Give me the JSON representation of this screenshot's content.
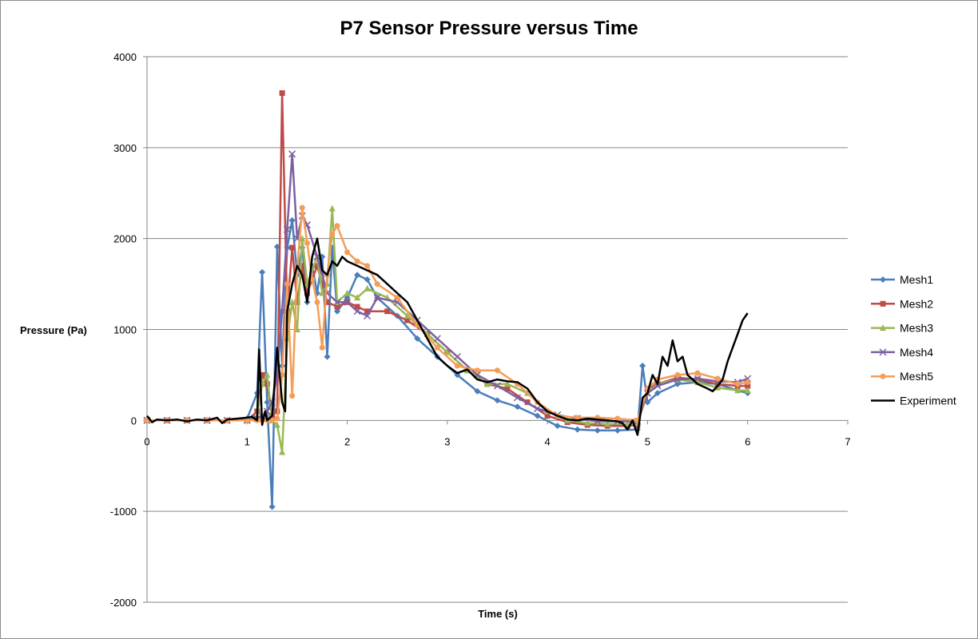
{
  "chart_data": {
    "type": "line",
    "title": "P7 Sensor Pressure versus Time",
    "xlabel": "Time (s)",
    "ylabel": "Pressure (Pa)",
    "xlim": [
      0,
      7
    ],
    "ylim": [
      -2000,
      4000
    ],
    "x_ticks": [
      0,
      1,
      2,
      3,
      4,
      5,
      6,
      7
    ],
    "y_ticks": [
      -2000,
      -1000,
      0,
      1000,
      2000,
      3000,
      4000
    ],
    "grid": "horizontal",
    "legend": "right",
    "series": [
      {
        "name": "Mesh1",
        "color": "#4a7ebb",
        "marker": "diamond",
        "x": [
          0,
          0.2,
          0.4,
          0.6,
          0.8,
          1.0,
          1.1,
          1.15,
          1.2,
          1.25,
          1.3,
          1.35,
          1.4,
          1.45,
          1.5,
          1.55,
          1.6,
          1.65,
          1.7,
          1.75,
          1.8,
          1.85,
          1.9,
          2.0,
          2.1,
          2.2,
          2.3,
          2.5,
          2.7,
          2.9,
          3.1,
          3.3,
          3.5,
          3.7,
          3.9,
          4.1,
          4.3,
          4.5,
          4.7,
          4.9,
          4.95,
          5.0,
          5.1,
          5.3,
          5.5,
          5.7,
          5.9,
          6.0
        ],
        "y": [
          0,
          0,
          0,
          0,
          0,
          20,
          300,
          1630,
          200,
          -950,
          1910,
          600,
          1900,
          2200,
          1600,
          1900,
          1300,
          1700,
          1400,
          1800,
          700,
          1900,
          1200,
          1350,
          1600,
          1550,
          1350,
          1150,
          900,
          700,
          500,
          320,
          220,
          150,
          50,
          -60,
          -100,
          -110,
          -110,
          -100,
          600,
          200,
          300,
          400,
          420,
          400,
          330,
          300
        ]
      },
      {
        "name": "Mesh2",
        "color": "#be4b48",
        "marker": "square",
        "x": [
          0,
          0.2,
          0.4,
          0.6,
          0.8,
          1.0,
          1.1,
          1.15,
          1.2,
          1.25,
          1.3,
          1.35,
          1.4,
          1.45,
          1.5,
          1.55,
          1.6,
          1.7,
          1.8,
          1.9,
          2.0,
          2.1,
          2.2,
          2.4,
          2.6,
          2.8,
          3.0,
          3.2,
          3.4,
          3.6,
          3.8,
          4.0,
          4.2,
          4.4,
          4.6,
          4.8,
          4.9,
          5.0,
          5.1,
          5.3,
          5.5,
          5.7,
          5.9,
          6.0
        ],
        "y": [
          0,
          0,
          0,
          0,
          0,
          0,
          100,
          500,
          400,
          50,
          100,
          3600,
          1200,
          1900,
          1300,
          1700,
          1400,
          1700,
          1300,
          1250,
          1300,
          1250,
          1200,
          1200,
          1100,
          950,
          750,
          550,
          400,
          350,
          200,
          50,
          -20,
          -50,
          -60,
          -60,
          -50,
          350,
          400,
          470,
          450,
          400,
          380,
          380
        ]
      },
      {
        "name": "Mesh3",
        "color": "#98b954",
        "marker": "triangle",
        "x": [
          0,
          0.2,
          0.4,
          0.6,
          0.8,
          1.0,
          1.1,
          1.15,
          1.2,
          1.25,
          1.3,
          1.35,
          1.4,
          1.45,
          1.5,
          1.55,
          1.6,
          1.7,
          1.75,
          1.8,
          1.85,
          1.9,
          2.0,
          2.1,
          2.2,
          2.4,
          2.6,
          2.8,
          3.0,
          3.2,
          3.4,
          3.6,
          3.8,
          4.0,
          4.2,
          4.4,
          4.6,
          4.8,
          4.9,
          5.0,
          5.1,
          5.3,
          5.5,
          5.7,
          5.9,
          6.0
        ],
        "y": [
          0,
          0,
          0,
          0,
          0,
          0,
          50,
          400,
          500,
          0,
          -50,
          -350,
          900,
          1300,
          1000,
          2000,
          1500,
          1800,
          1400,
          1500,
          2330,
          1300,
          1400,
          1350,
          1450,
          1350,
          1150,
          950,
          750,
          550,
          400,
          400,
          300,
          100,
          0,
          -30,
          -40,
          -40,
          -30,
          300,
          400,
          450,
          420,
          360,
          330,
          330
        ]
      },
      {
        "name": "Mesh4",
        "color": "#7d60a0",
        "marker": "x",
        "x": [
          0,
          0.2,
          0.4,
          0.6,
          0.8,
          1.0,
          1.1,
          1.15,
          1.2,
          1.25,
          1.3,
          1.35,
          1.4,
          1.45,
          1.5,
          1.55,
          1.6,
          1.7,
          1.8,
          1.9,
          2.0,
          2.1,
          2.2,
          2.3,
          2.5,
          2.7,
          2.9,
          3.1,
          3.3,
          3.5,
          3.7,
          3.9,
          4.1,
          4.3,
          4.5,
          4.7,
          4.9,
          5.0,
          5.1,
          5.3,
          5.5,
          5.7,
          5.9,
          6.0
        ],
        "y": [
          0,
          0,
          0,
          0,
          0,
          0,
          20,
          50,
          100,
          200,
          500,
          1200,
          2100,
          2930,
          2000,
          2250,
          2150,
          1800,
          1400,
          1300,
          1300,
          1200,
          1150,
          1350,
          1300,
          1100,
          900,
          700,
          500,
          380,
          250,
          130,
          60,
          20,
          -10,
          -10,
          -10,
          300,
          380,
          450,
          460,
          430,
          420,
          460
        ]
      },
      {
        "name": "Mesh5",
        "color": "#f59d56",
        "marker": "circle",
        "x": [
          0,
          0.2,
          0.4,
          0.6,
          0.8,
          1.0,
          1.1,
          1.15,
          1.2,
          1.25,
          1.3,
          1.35,
          1.4,
          1.45,
          1.5,
          1.55,
          1.6,
          1.65,
          1.7,
          1.75,
          1.8,
          1.85,
          1.9,
          2.0,
          2.1,
          2.2,
          2.3,
          2.5,
          2.7,
          2.9,
          3.1,
          3.3,
          3.5,
          3.7,
          3.9,
          4.1,
          4.3,
          4.5,
          4.7,
          4.9,
          5.0,
          5.1,
          5.3,
          5.5,
          5.7,
          5.9,
          6.0
        ],
        "y": [
          0,
          0,
          0,
          0,
          0,
          0,
          0,
          0,
          0,
          0,
          20,
          500,
          1500,
          270,
          1650,
          2340,
          1950,
          1550,
          1300,
          800,
          1600,
          2050,
          2140,
          1850,
          1750,
          1700,
          1500,
          1350,
          1050,
          800,
          600,
          550,
          550,
          400,
          200,
          50,
          30,
          30,
          20,
          0,
          350,
          450,
          500,
          520,
          460,
          400,
          420
        ]
      },
      {
        "name": "Experiment",
        "color": "#000000",
        "marker": "none",
        "x": [
          0,
          0.05,
          0.1,
          0.2,
          0.3,
          0.4,
          0.5,
          0.6,
          0.7,
          0.75,
          0.8,
          0.9,
          1.0,
          1.05,
          1.1,
          1.12,
          1.15,
          1.18,
          1.2,
          1.25,
          1.3,
          1.35,
          1.38,
          1.4,
          1.45,
          1.5,
          1.55,
          1.6,
          1.65,
          1.7,
          1.75,
          1.8,
          1.85,
          1.9,
          1.95,
          2.0,
          2.1,
          2.2,
          2.3,
          2.4,
          2.5,
          2.6,
          2.7,
          2.8,
          2.9,
          3.0,
          3.1,
          3.2,
          3.3,
          3.4,
          3.5,
          3.6,
          3.7,
          3.8,
          3.9,
          4.0,
          4.1,
          4.2,
          4.3,
          4.4,
          4.5,
          4.6,
          4.7,
          4.75,
          4.8,
          4.85,
          4.9,
          4.95,
          5.0,
          5.05,
          5.1,
          5.15,
          5.2,
          5.25,
          5.3,
          5.35,
          5.4,
          5.5,
          5.6,
          5.65,
          5.7,
          5.75,
          5.8,
          5.85,
          5.9,
          5.95,
          6.0
        ],
        "y": [
          50,
          -20,
          10,
          0,
          10,
          -10,
          10,
          0,
          30,
          -30,
          10,
          20,
          30,
          40,
          0,
          780,
          -50,
          100,
          0,
          50,
          800,
          200,
          100,
          1200,
          1500,
          1700,
          1600,
          1300,
          1800,
          2000,
          1650,
          1600,
          1750,
          1700,
          1800,
          1750,
          1700,
          1650,
          1600,
          1500,
          1400,
          1300,
          1100,
          900,
          700,
          600,
          520,
          560,
          450,
          420,
          450,
          430,
          420,
          350,
          200,
          100,
          50,
          10,
          0,
          20,
          10,
          0,
          -10,
          -30,
          -100,
          0,
          -160,
          250,
          300,
          500,
          400,
          700,
          600,
          880,
          650,
          700,
          500,
          400,
          350,
          320,
          380,
          450,
          650,
          800,
          950,
          1100,
          1180
        ]
      }
    ]
  }
}
